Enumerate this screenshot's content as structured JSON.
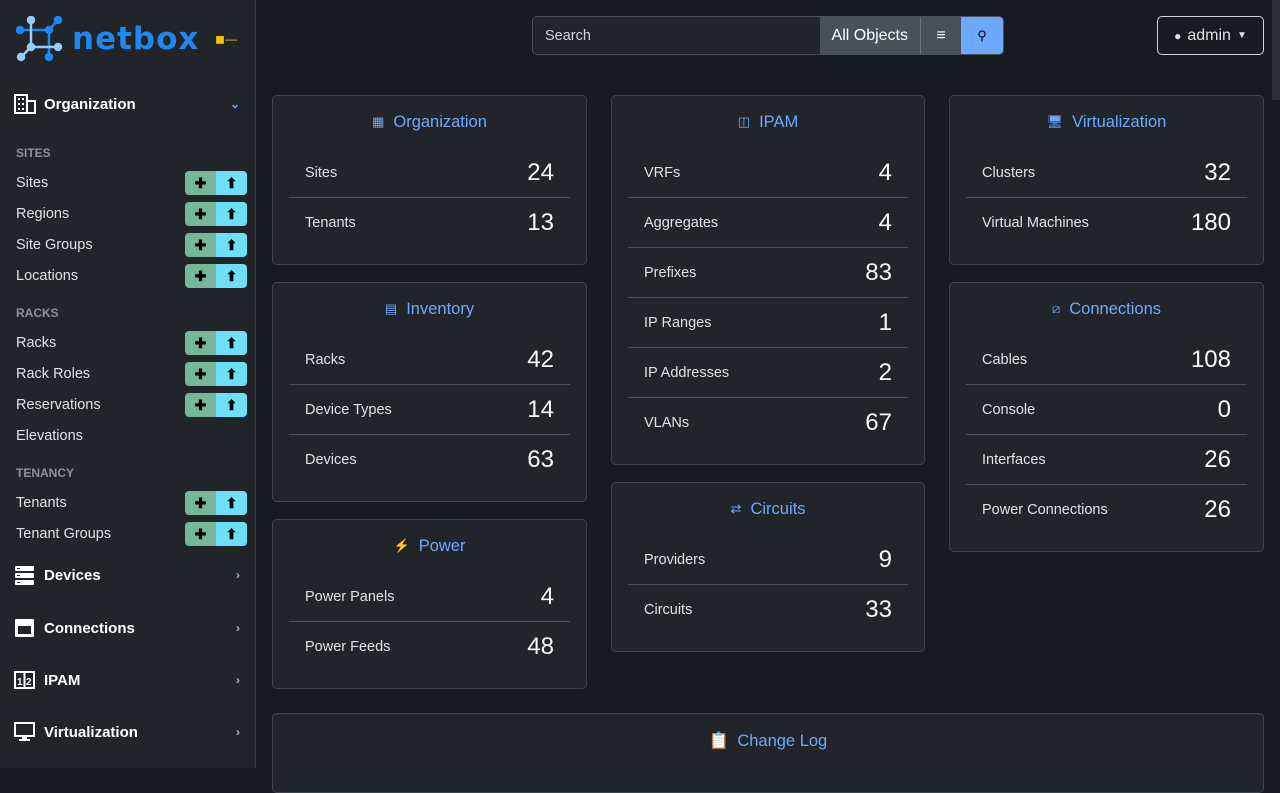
{
  "brand": {
    "name": "netbox",
    "accent": "#1e88f0"
  },
  "sidebar": {
    "sections": [
      {
        "label": "Organization",
        "icon": "building-icon",
        "expanded": true
      },
      {
        "label": "Devices",
        "icon": "server-icon"
      },
      {
        "label": "Connections",
        "icon": "ethernet-icon"
      },
      {
        "label": "IPAM",
        "icon": "ipam-icon"
      },
      {
        "label": "Virtualization",
        "icon": "monitor-icon"
      }
    ],
    "groups": [
      {
        "label": "SITES",
        "items": [
          {
            "label": "Sites",
            "buttons": true
          },
          {
            "label": "Regions",
            "buttons": true
          },
          {
            "label": "Site Groups",
            "buttons": true
          },
          {
            "label": "Locations",
            "buttons": true
          }
        ]
      },
      {
        "label": "RACKS",
        "items": [
          {
            "label": "Racks",
            "buttons": true
          },
          {
            "label": "Rack Roles",
            "buttons": true
          },
          {
            "label": "Reservations",
            "buttons": true
          },
          {
            "label": "Elevations",
            "buttons": false
          }
        ]
      },
      {
        "label": "TENANCY",
        "items": [
          {
            "label": "Tenants",
            "buttons": true
          },
          {
            "label": "Tenant Groups",
            "buttons": true
          }
        ]
      }
    ]
  },
  "header": {
    "search_placeholder": "Search",
    "scope": "All Objects",
    "user": "admin"
  },
  "cards": {
    "organization": {
      "title": "Organization",
      "rows": [
        [
          "Sites",
          "24"
        ],
        [
          "Tenants",
          "13"
        ]
      ]
    },
    "inventory": {
      "title": "Inventory",
      "rows": [
        [
          "Racks",
          "42"
        ],
        [
          "Device Types",
          "14"
        ],
        [
          "Devices",
          "63"
        ]
      ]
    },
    "power": {
      "title": "Power",
      "rows": [
        [
          "Power Panels",
          "4"
        ],
        [
          "Power Feeds",
          "48"
        ]
      ]
    },
    "ipam": {
      "title": "IPAM",
      "rows": [
        [
          "VRFs",
          "4"
        ],
        [
          "Aggregates",
          "4"
        ],
        [
          "Prefixes",
          "83"
        ],
        [
          "IP Ranges",
          "1"
        ],
        [
          "IP Addresses",
          "2"
        ],
        [
          "VLANs",
          "67"
        ]
      ]
    },
    "circuits": {
      "title": "Circuits",
      "rows": [
        [
          "Providers",
          "9"
        ],
        [
          "Circuits",
          "33"
        ]
      ]
    },
    "virtualization": {
      "title": "Virtualization",
      "rows": [
        [
          "Clusters",
          "32"
        ],
        [
          "Virtual Machines",
          "180"
        ]
      ]
    },
    "connections": {
      "title": "Connections",
      "rows": [
        [
          "Cables",
          "108"
        ],
        [
          "Console",
          "0"
        ],
        [
          "Interfaces",
          "26"
        ],
        [
          "Power Connections",
          "26"
        ]
      ]
    }
  },
  "changelog": {
    "title": "Change Log"
  }
}
